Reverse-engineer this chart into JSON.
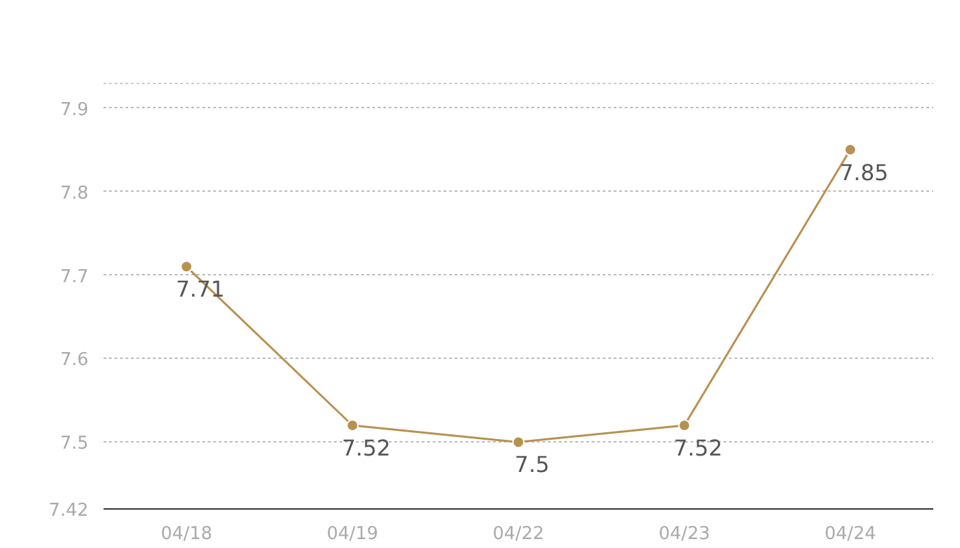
{
  "chart_data": {
    "type": "line",
    "categories": [
      "04/18",
      "04/19",
      "04/22",
      "04/23",
      "04/24"
    ],
    "series": [
      {
        "color": "#b8914f",
        "values": [
          7.71,
          7.52,
          7.5,
          7.52,
          7.85
        ]
      }
    ],
    "ylim": [
      7.42,
      7.93
    ],
    "yticks": [
      7.42,
      7.5,
      7.6,
      7.7,
      7.8,
      7.9,
      {
        "value": 7.93,
        "label": null
      }
    ],
    "grid": "y",
    "marker": "circle",
    "line_style": "solid",
    "data_labels": true
  }
}
